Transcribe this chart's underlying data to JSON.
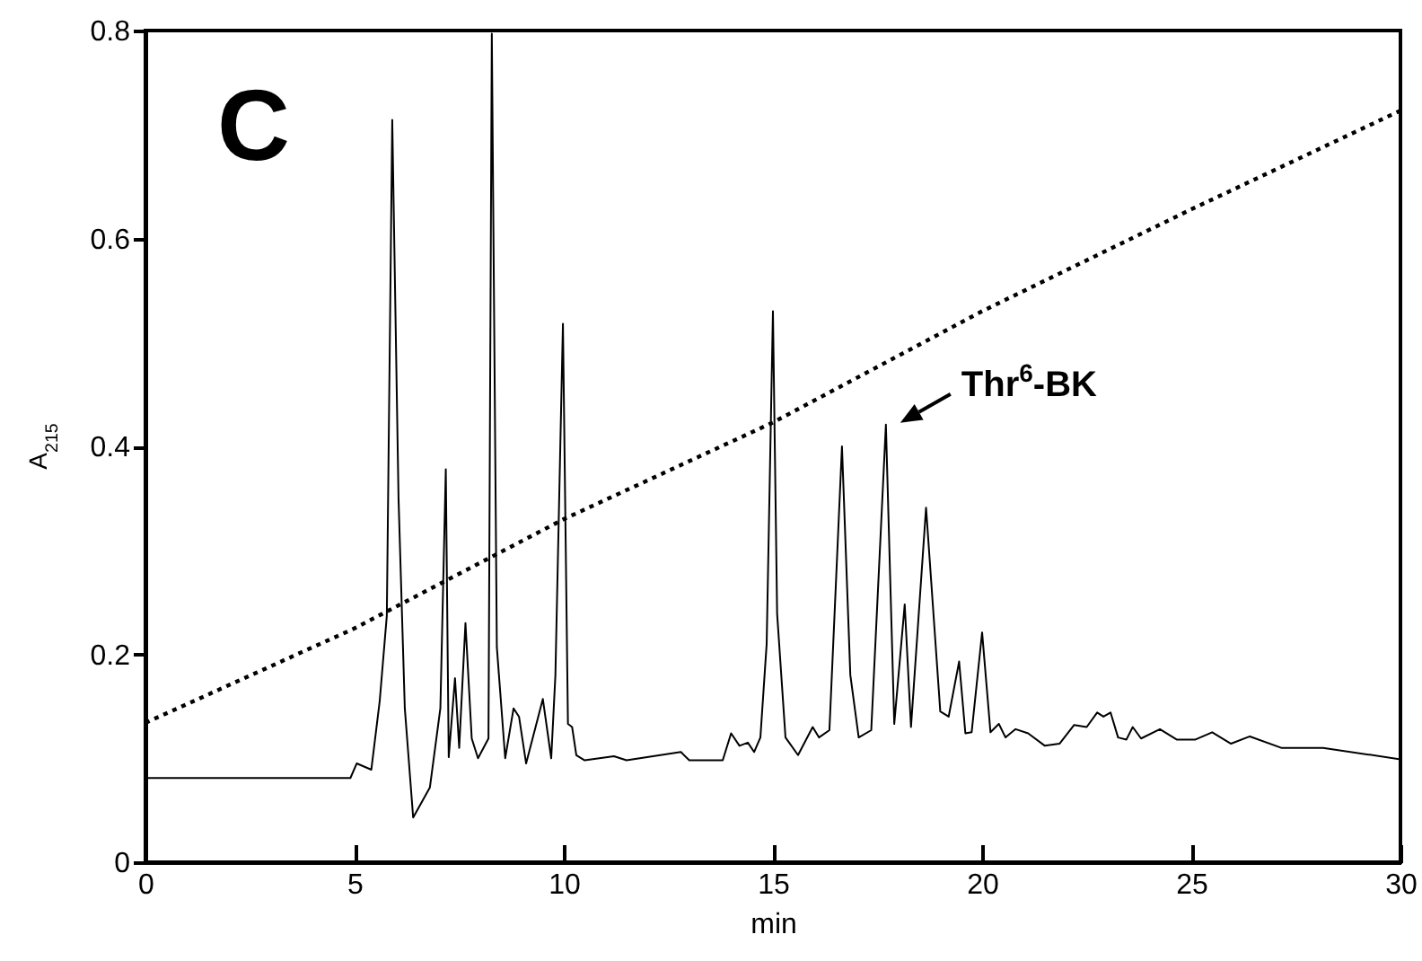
{
  "chart_data": {
    "type": "line",
    "xlabel": "min",
    "ylabel": "A$_{215}$",
    "xlim": [
      0,
      30
    ],
    "ylim": [
      0,
      0.8
    ],
    "xticks": [
      0,
      5,
      10,
      15,
      20,
      25,
      30
    ],
    "yticks": [
      0,
      0.2,
      0.4,
      0.6,
      0.8
    ],
    "grid": false,
    "annotations": [
      "C",
      {
        "text": "Thr$^{6}$-BK",
        "x": 17.7,
        "y": 0.421
      }
    ],
    "series": [
      {
        "color": "#000000",
        "line_style": "solid",
        "x": [
          0,
          4.9,
          5.05,
          5.4,
          5.6,
          5.77,
          5.9,
          6.05,
          6.2,
          6.4,
          6.8,
          7.05,
          7.18,
          7.25,
          7.4,
          7.5,
          7.65,
          7.8,
          7.95,
          8.2,
          8.28,
          8.4,
          8.6,
          8.8,
          8.93,
          9.1,
          9.5,
          9.7,
          9.8,
          9.98,
          10.1,
          10.2,
          10.3,
          10.5,
          11.2,
          11.5,
          12.8,
          13,
          13.8,
          14,
          14.2,
          14.4,
          14.55,
          14.7,
          14.85,
          15,
          15.1,
          15.3,
          15.6,
          15.95,
          16.1,
          16.35,
          16.65,
          16.85,
          17.05,
          17.35,
          17.7,
          17.9,
          18.15,
          18.3,
          18.66,
          19,
          19.2,
          19.45,
          19.6,
          19.75,
          20,
          20.2,
          20.4,
          20.56,
          20.8,
          21.1,
          21.5,
          21.85,
          22.2,
          22.5,
          22.75,
          22.9,
          23.07,
          23.25,
          23.45,
          23.6,
          23.8,
          24.25,
          24.65,
          25.1,
          25.5,
          25.95,
          26.4,
          27.15,
          28.15,
          30
        ],
        "values": [
          0.081,
          0.081,
          0.095,
          0.089,
          0.155,
          0.237,
          0.714,
          0.35,
          0.148,
          0.043,
          0.072,
          0.148,
          0.378,
          0.101,
          0.177,
          0.11,
          0.23,
          0.119,
          0.1,
          0.119,
          0.797,
          0.207,
          0.1,
          0.148,
          0.14,
          0.095,
          0.157,
          0.1,
          0.18,
          0.518,
          0.133,
          0.13,
          0.103,
          0.098,
          0.102,
          0.098,
          0.106,
          0.098,
          0.098,
          0.124,
          0.112,
          0.115,
          0.106,
          0.12,
          0.21,
          0.53,
          0.239,
          0.12,
          0.103,
          0.13,
          0.12,
          0.127,
          0.4,
          0.18,
          0.12,
          0.127,
          0.421,
          0.133,
          0.248,
          0.13,
          0.341,
          0.145,
          0.14,
          0.193,
          0.124,
          0.125,
          0.221,
          0.125,
          0.133,
          0.12,
          0.128,
          0.124,
          0.112,
          0.114,
          0.132,
          0.13,
          0.144,
          0.14,
          0.144,
          0.12,
          0.118,
          0.13,
          0.119,
          0.128,
          0.118,
          0.118,
          0.125,
          0.114,
          0.121,
          0.11,
          0.11,
          0.099
        ]
      },
      {
        "color": "#000000",
        "line_style": "dotted",
        "x": [
          0,
          5,
          10,
          15,
          20,
          25,
          30
        ],
        "values": [
          0.134,
          0.225,
          0.33,
          0.423,
          0.53,
          0.628,
          0.723
        ]
      }
    ]
  }
}
